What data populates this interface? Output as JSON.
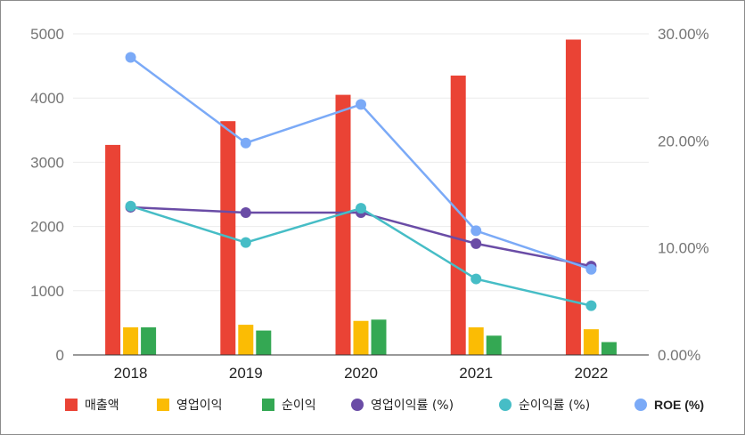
{
  "chart_data": {
    "type": "bar",
    "categories": [
      "2018",
      "2019",
      "2020",
      "2021",
      "2022"
    ],
    "y_left": {
      "ylim": [
        0,
        5000
      ],
      "ticks": [
        "0",
        "1000",
        "2000",
        "3000",
        "4000",
        "5000"
      ]
    },
    "y_right": {
      "ylim": [
        0,
        30
      ],
      "ticks": [
        "0.00%",
        "10.00%",
        "20.00%",
        "30.00%"
      ]
    },
    "grid": true,
    "legend_position": "bottom",
    "bar_series": [
      {
        "name": "매출액",
        "color": "#ea4335",
        "values": [
          3270,
          3640,
          4050,
          4350,
          4910
        ]
      },
      {
        "name": "영업이익",
        "color": "#fbbc04",
        "values": [
          430,
          470,
          530,
          430,
          400
        ]
      },
      {
        "name": "순이익",
        "color": "#34a853",
        "values": [
          430,
          380,
          550,
          300,
          200
        ]
      }
    ],
    "line_series": [
      {
        "name": "영업이익률 (%)",
        "color": "#6a4ca6",
        "values": [
          13.8,
          13.3,
          13.3,
          10.4,
          8.3
        ]
      },
      {
        "name": "순이익률 (%)",
        "color": "#46bdc6",
        "values": [
          13.9,
          10.5,
          13.7,
          7.1,
          4.6
        ]
      },
      {
        "name": "ROE (%)",
        "color": "#7baaf7",
        "values": [
          27.8,
          19.8,
          23.4,
          11.6,
          8.0
        ]
      }
    ]
  }
}
